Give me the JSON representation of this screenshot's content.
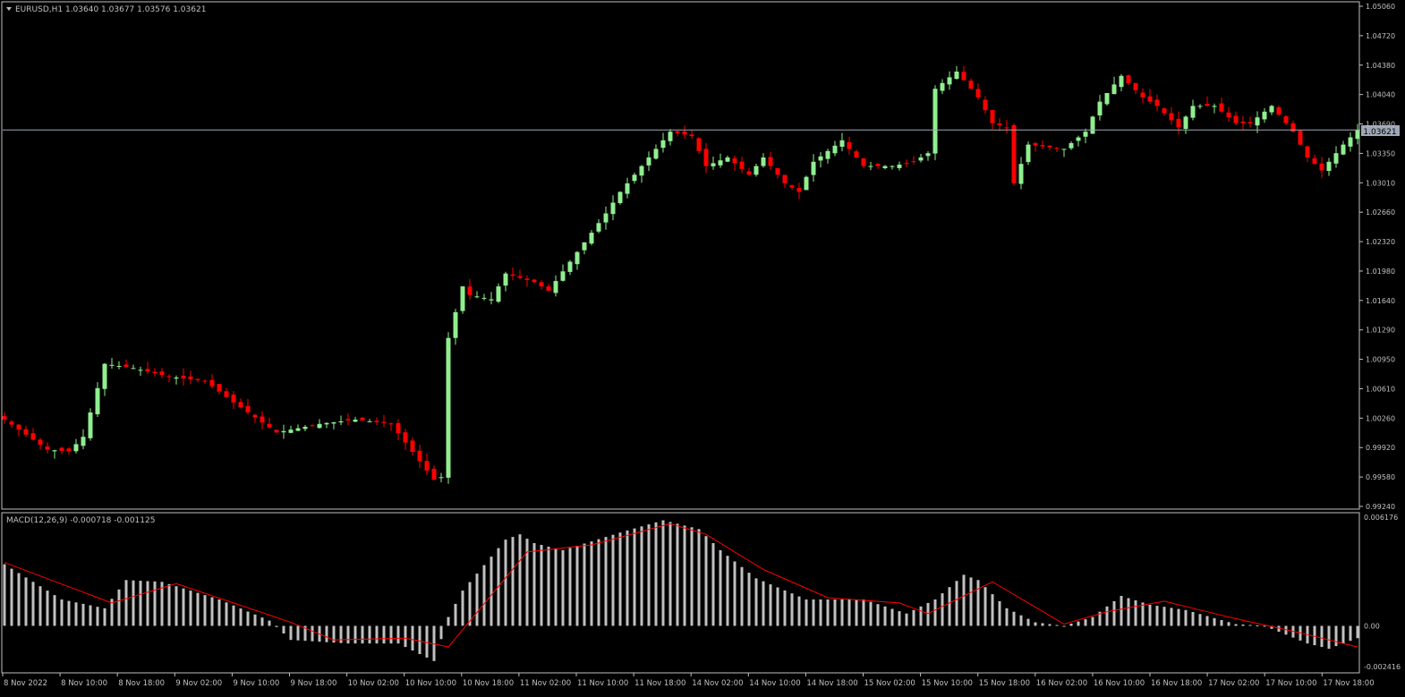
{
  "main_panel": {
    "title": "EURUSD,H1  1.03640 1.03677 1.03576 1.03621",
    "current_price_label": "1.03621",
    "price_axis": [
      "1.05060",
      "1.04720",
      "1.04380",
      "1.04040",
      "1.03690",
      "1.03350",
      "1.03010",
      "1.02660",
      "1.02320",
      "1.01980",
      "1.01640",
      "1.01290",
      "1.00950",
      "1.00610",
      "1.00260",
      "0.99920",
      "0.99580",
      "0.99240"
    ]
  },
  "macd_panel": {
    "title": "MACD(12,26,9) -0.000718 -0.001125",
    "axis": [
      "0.006176",
      "0.00",
      "-0.002416"
    ]
  },
  "time_axis": [
    "8 Nov 2022",
    "8 Nov 10:00",
    "8 Nov 18:00",
    "9 Nov 02:00",
    "9 Nov 10:00",
    "9 Nov 18:00",
    "10 Nov 02:00",
    "10 Nov 10:00",
    "10 Nov 18:00",
    "11 Nov 02:00",
    "11 Nov 10:00",
    "11 Nov 18:00",
    "14 Nov 02:00",
    "14 Nov 10:00",
    "14 Nov 18:00",
    "15 Nov 02:00",
    "15 Nov 10:00",
    "15 Nov 18:00",
    "16 Nov 02:00",
    "16 Nov 10:00",
    "16 Nov 18:00",
    "17 Nov 02:00",
    "17 Nov 10:00",
    "17 Nov 18:00"
  ],
  "colors": {
    "background": "#000000",
    "bull": "#90ee90",
    "bear": "#ff0000",
    "axis_text": "#c0c0c0",
    "macd_hist": "#c0c0c0",
    "signal": "#ff0000",
    "frame": "#c0c0c0"
  },
  "chart_data": [
    {
      "type": "candlestick",
      "symbol": "EURUSD",
      "timeframe": "H1",
      "ylim": [
        0.9924,
        1.0506
      ],
      "current_price": 1.03621,
      "anchors": [
        {
          "i": 0,
          "p": 1.0025
        },
        {
          "i": 6,
          "p": 0.999
        },
        {
          "i": 9,
          "p": 0.9988
        },
        {
          "i": 11,
          "p": 1.0005
        },
        {
          "i": 14,
          "p": 1.009
        },
        {
          "i": 18,
          "p": 1.0085
        },
        {
          "i": 23,
          "p": 1.0075
        },
        {
          "i": 28,
          "p": 1.007
        },
        {
          "i": 32,
          "p": 1.0045
        },
        {
          "i": 38,
          "p": 1.001
        },
        {
          "i": 44,
          "p": 1.002
        },
        {
          "i": 49,
          "p": 1.0025
        },
        {
          "i": 54,
          "p": 1.002
        },
        {
          "i": 60,
          "p": 0.9955
        },
        {
          "i": 61,
          "p": 0.9958
        },
        {
          "i": 62,
          "p": 1.012
        },
        {
          "i": 64,
          "p": 1.018
        },
        {
          "i": 65,
          "p": 1.017
        },
        {
          "i": 68,
          "p": 1.0165
        },
        {
          "i": 70,
          "p": 1.0195
        },
        {
          "i": 74,
          "p": 1.0185
        },
        {
          "i": 76,
          "p": 1.0175
        },
        {
          "i": 80,
          "p": 1.022
        },
        {
          "i": 84,
          "p": 1.0265
        },
        {
          "i": 86,
          "p": 1.029
        },
        {
          "i": 89,
          "p": 1.032
        },
        {
          "i": 93,
          "p": 1.036
        },
        {
          "i": 96,
          "p": 1.0355
        },
        {
          "i": 98,
          "p": 1.032
        },
        {
          "i": 101,
          "p": 1.033
        },
        {
          "i": 104,
          "p": 1.031
        },
        {
          "i": 106,
          "p": 1.033
        },
        {
          "i": 109,
          "p": 1.03
        },
        {
          "i": 111,
          "p": 1.029
        },
        {
          "i": 113,
          "p": 1.0325
        },
        {
          "i": 117,
          "p": 1.035
        },
        {
          "i": 120,
          "p": 1.032
        },
        {
          "i": 124,
          "p": 1.032
        },
        {
          "i": 127,
          "p": 1.0325
        },
        {
          "i": 129,
          "p": 1.0335
        },
        {
          "i": 130,
          "p": 1.041
        },
        {
          "i": 133,
          "p": 1.043
        },
        {
          "i": 136,
          "p": 1.04
        },
        {
          "i": 138,
          "p": 1.037
        },
        {
          "i": 140,
          "p": 1.0365
        },
        {
          "i": 141,
          "p": 1.03
        },
        {
          "i": 143,
          "p": 1.0345
        },
        {
          "i": 148,
          "p": 1.034
        },
        {
          "i": 151,
          "p": 1.036
        },
        {
          "i": 153,
          "p": 1.0395
        },
        {
          "i": 156,
          "p": 1.0425
        },
        {
          "i": 159,
          "p": 1.04
        },
        {
          "i": 161,
          "p": 1.039
        },
        {
          "i": 164,
          "p": 1.0365
        },
        {
          "i": 166,
          "p": 1.039
        },
        {
          "i": 169,
          "p": 1.039
        },
        {
          "i": 172,
          "p": 1.037
        },
        {
          "i": 174,
          "p": 1.037
        },
        {
          "i": 177,
          "p": 1.039
        },
        {
          "i": 180,
          "p": 1.036
        },
        {
          "i": 182,
          "p": 1.033
        },
        {
          "i": 184,
          "p": 1.0315
        },
        {
          "i": 187,
          "p": 1.0345
        },
        {
          "i": 189,
          "p": 1.0362
        }
      ]
    },
    {
      "type": "bar",
      "series": [
        {
          "name": "MACD(12,26,9)"
        }
      ],
      "ylim": [
        -0.002416,
        0.006176
      ],
      "macd_anchors": [
        {
          "i": 0,
          "v": 0.0035
        },
        {
          "i": 8,
          "v": 0.0015
        },
        {
          "i": 14,
          "v": 0.001
        },
        {
          "i": 17,
          "v": 0.0026
        },
        {
          "i": 22,
          "v": 0.0025
        },
        {
          "i": 30,
          "v": 0.0015
        },
        {
          "i": 37,
          "v": 0.0003
        },
        {
          "i": 40,
          "v": -0.0008
        },
        {
          "i": 48,
          "v": -0.001
        },
        {
          "i": 55,
          "v": -0.001
        },
        {
          "i": 60,
          "v": -0.002
        },
        {
          "i": 62,
          "v": 0.0005
        },
        {
          "i": 64,
          "v": 0.002
        },
        {
          "i": 70,
          "v": 0.0049
        },
        {
          "i": 72,
          "v": 0.0052
        },
        {
          "i": 74,
          "v": 0.0047
        },
        {
          "i": 78,
          "v": 0.0043
        },
        {
          "i": 82,
          "v": 0.0048
        },
        {
          "i": 86,
          "v": 0.0053
        },
        {
          "i": 92,
          "v": 0.006
        },
        {
          "i": 97,
          "v": 0.0055
        },
        {
          "i": 100,
          "v": 0.0043
        },
        {
          "i": 105,
          "v": 0.0027
        },
        {
          "i": 112,
          "v": 0.0015
        },
        {
          "i": 120,
          "v": 0.0015
        },
        {
          "i": 126,
          "v": 0.0007
        },
        {
          "i": 130,
          "v": 0.0015
        },
        {
          "i": 134,
          "v": 0.0029
        },
        {
          "i": 136,
          "v": 0.0026
        },
        {
          "i": 140,
          "v": 0.001
        },
        {
          "i": 144,
          "v": 0.0002
        },
        {
          "i": 148,
          "v": 0.0
        },
        {
          "i": 152,
          "v": 0.0005
        },
        {
          "i": 156,
          "v": 0.0017
        },
        {
          "i": 160,
          "v": 0.0012
        },
        {
          "i": 165,
          "v": 0.0009
        },
        {
          "i": 172,
          "v": 0.0001
        },
        {
          "i": 176,
          "v": 0.0
        },
        {
          "i": 182,
          "v": -0.001
        },
        {
          "i": 185,
          "v": -0.0013
        },
        {
          "i": 189,
          "v": -0.0007
        }
      ],
      "signal_anchors": [
        {
          "i": 0,
          "v": 0.0036
        },
        {
          "i": 15,
          "v": 0.0013
        },
        {
          "i": 24,
          "v": 0.0024
        },
        {
          "i": 40,
          "v": 0.0002
        },
        {
          "i": 46,
          "v": -0.0008
        },
        {
          "i": 56,
          "v": -0.0007
        },
        {
          "i": 62,
          "v": -0.0012
        },
        {
          "i": 73,
          "v": 0.0042
        },
        {
          "i": 82,
          "v": 0.0046
        },
        {
          "i": 93,
          "v": 0.0058
        },
        {
          "i": 98,
          "v": 0.0052
        },
        {
          "i": 106,
          "v": 0.0032
        },
        {
          "i": 115,
          "v": 0.0016
        },
        {
          "i": 125,
          "v": 0.0013
        },
        {
          "i": 129,
          "v": 0.0007
        },
        {
          "i": 138,
          "v": 0.0025
        },
        {
          "i": 148,
          "v": 0.0001
        },
        {
          "i": 154,
          "v": 0.0008
        },
        {
          "i": 162,
          "v": 0.0014
        },
        {
          "i": 171,
          "v": 0.0005
        },
        {
          "i": 181,
          "v": -0.0004
        },
        {
          "i": 189,
          "v": -0.0012
        }
      ]
    }
  ]
}
